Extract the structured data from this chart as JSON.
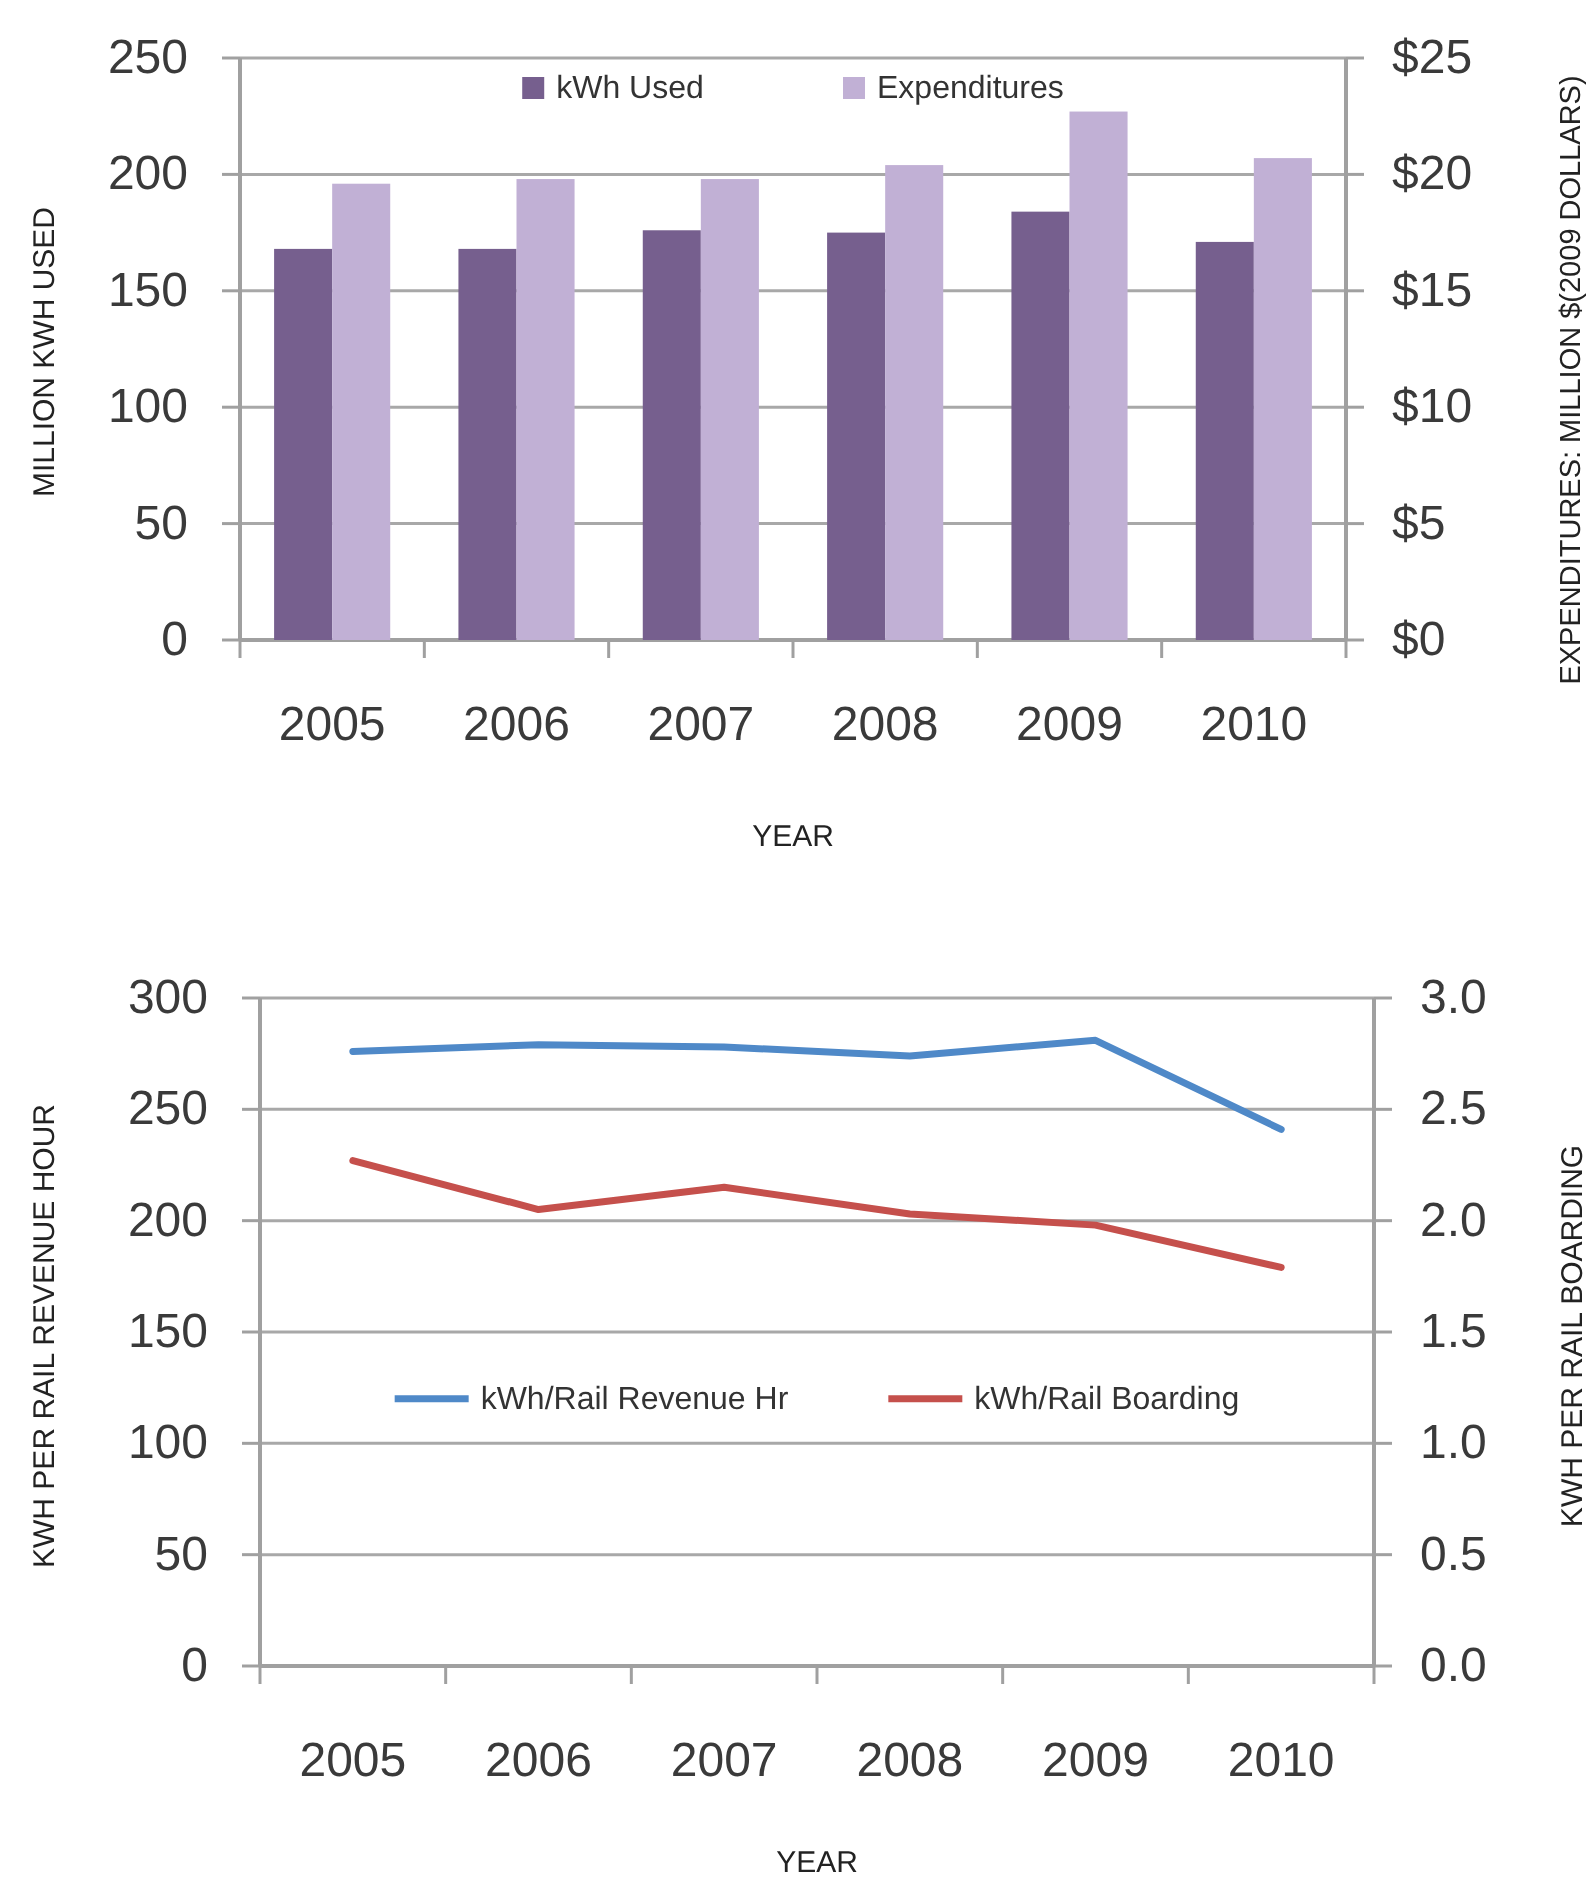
{
  "chart_data": [
    {
      "type": "bar",
      "categories": [
        "2005",
        "2006",
        "2007",
        "2008",
        "2009",
        "2010"
      ],
      "xlabel": "YEAR",
      "ylabel": "MILLION KWH USED",
      "y2label": "EXPENDITURES: MILLION $(2009 DOLLARS)",
      "series": [
        {
          "name": "kWh Used",
          "color": "#765f8e",
          "values": [
            168,
            168,
            176,
            175,
            184,
            171
          ]
        },
        {
          "name": "Expenditures",
          "color": "#c1b0d5",
          "axis": "y2",
          "values": [
            19.6,
            19.8,
            19.8,
            20.4,
            22.7,
            20.7
          ]
        }
      ],
      "ylim": [
        0,
        250
      ],
      "yticks": [
        0,
        50,
        100,
        150,
        200,
        250
      ],
      "y2lim": [
        0,
        25
      ],
      "y2ticks": [
        {
          "value": 0,
          "label": "$0"
        },
        {
          "value": 5,
          "label": "$5"
        },
        {
          "value": 10,
          "label": "$10"
        },
        {
          "value": 15,
          "label": "$15"
        },
        {
          "value": 20,
          "label": "$20"
        },
        {
          "value": 25,
          "label": "$25"
        }
      ],
      "grid": "y",
      "legend": "top"
    },
    {
      "type": "line",
      "categories": [
        "2005",
        "2006",
        "2007",
        "2008",
        "2009",
        "2010"
      ],
      "xlabel": "YEAR",
      "ylabel": "KWH PER RAIL REVENUE HOUR",
      "y2label": "KWH PER RAIL BOARDING",
      "series": [
        {
          "name": "kWh/Rail Revenue Hr",
          "color": "#4f89c8",
          "values": [
            276,
            279,
            278,
            274,
            281,
            241
          ]
        },
        {
          "name": "kWh/Rail Boarding",
          "color": "#c5504c",
          "axis": "y2",
          "values": [
            2.27,
            2.05,
            2.15,
            2.03,
            1.98,
            1.79
          ]
        }
      ],
      "ylim": [
        0,
        300
      ],
      "yticks": [
        0,
        50,
        100,
        150,
        200,
        250,
        300
      ],
      "y2lim": [
        0,
        3
      ],
      "y2ticks": [
        {
          "value": 0,
          "label": "0.0"
        },
        {
          "value": 0.5,
          "label": "0.5"
        },
        {
          "value": 1,
          "label": "1.0"
        },
        {
          "value": 1.5,
          "label": "1.5"
        },
        {
          "value": 2,
          "label": "2.0"
        },
        {
          "value": 2.5,
          "label": "2.5"
        },
        {
          "value": 3,
          "label": "3.0"
        }
      ],
      "grid": "y",
      "legend": "center"
    }
  ]
}
